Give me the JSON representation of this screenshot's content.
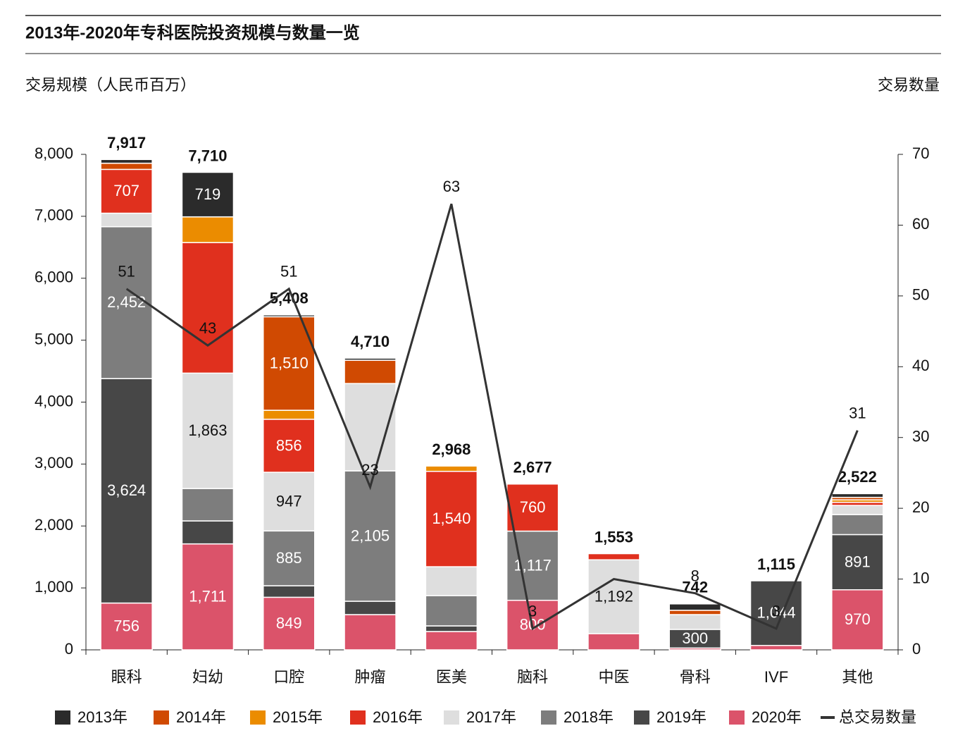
{
  "chart_data": {
    "type": "bar",
    "title": "2013年-2020年专科医院投资规模与数量一览",
    "ylabel": "交易规模（人民币百万）",
    "y2label": "交易数量",
    "categories": [
      "眼科",
      "妇幼",
      "口腔",
      "肿瘤",
      "医美",
      "脑科",
      "中医",
      "骨科",
      "IVF",
      "其他"
    ],
    "ylim": [
      0,
      8000
    ],
    "yticks": [
      0,
      {
        "value": 1000,
        "label": "1,000"
      },
      {
        "value": 2000,
        "label": "2,000"
      },
      {
        "value": 3000,
        "label": "3,000"
      },
      {
        "value": 4000,
        "label": "4,000"
      },
      {
        "value": 5000,
        "label": "5,000"
      },
      {
        "value": 6000,
        "label": "6,000"
      },
      {
        "value": 7000,
        "label": "7,000"
      },
      {
        "value": 8000,
        "label": "8,000"
      }
    ],
    "y2lim": [
      0,
      70
    ],
    "y2ticks": [
      0,
      10,
      20,
      30,
      40,
      50,
      60,
      70
    ],
    "total_labels": [
      "7,917",
      "7,710",
      "5,408",
      "4,710",
      "2,968",
      "2,677",
      "1,553",
      "742",
      "1,115",
      "2,522"
    ],
    "series": [
      {
        "name": "2020年",
        "color": "#db536a",
        "values": [
          756,
          1711,
          849,
          569,
          296,
          800,
          262,
          30,
          71,
          970
        ],
        "value_labels": [
          "756",
          "1,711",
          "849",
          null,
          null,
          "800",
          null,
          null,
          null,
          "970"
        ]
      },
      {
        "name": "2019年",
        "color": "#474747",
        "values": [
          3624,
          371,
          186,
          216,
          91,
          0,
          0,
          300,
          1044,
          891
        ],
        "value_labels": [
          "3,624",
          null,
          null,
          null,
          null,
          null,
          null,
          "300",
          "1,044",
          "891"
        ]
      },
      {
        "name": "2018年",
        "color": "#7d7d7d",
        "values": [
          2452,
          523,
          885,
          2105,
          489,
          1117,
          0,
          0,
          0,
          323
        ],
        "value_labels": [
          "2,452",
          null,
          "885",
          "2,105",
          null,
          "1,117",
          null,
          null,
          null,
          null
        ]
      },
      {
        "name": "2017年",
        "color": "#dedede",
        "values": [
          218,
          1863,
          947,
          1410,
          466,
          0,
          1192,
          239,
          0,
          148
        ],
        "value_labels": [
          null,
          "1,863",
          "947",
          null,
          null,
          null,
          "1,192",
          null,
          null,
          null
        ]
      },
      {
        "name": "2016年",
        "color": "#e0301e",
        "values": [
          707,
          2108,
          856,
          0,
          1540,
          760,
          99,
          0,
          0,
          50
        ],
        "value_labels": [
          "707",
          null,
          "856",
          null,
          "1,540",
          "760",
          null,
          null,
          null,
          null
        ]
      },
      {
        "name": "2015年",
        "color": "#eb8c00",
        "values": [
          0,
          415,
          145,
          0,
          86,
          0,
          0,
          0,
          0,
          40
        ],
        "value_labels": [
          null,
          null,
          null,
          null,
          null,
          null,
          null,
          null,
          null,
          null
        ]
      },
      {
        "name": "2014年",
        "color": "#d04a02",
        "values": [
          100,
          0,
          1510,
          376,
          0,
          0,
          0,
          70,
          0,
          40
        ],
        "value_labels": [
          null,
          null,
          "1,510",
          null,
          null,
          null,
          null,
          null,
          null,
          null
        ]
      },
      {
        "name": "2013年",
        "color": "#2b2b2b",
        "values": [
          60,
          719,
          30,
          34,
          0,
          0,
          0,
          103,
          0,
          60
        ],
        "value_labels": [
          null,
          "719",
          null,
          null,
          null,
          null,
          null,
          null,
          null,
          null
        ]
      },
      {
        "name": "总交易数量",
        "color": "#333333",
        "axis": "y2",
        "type": "line",
        "values": [
          51,
          43,
          51,
          23,
          63,
          3,
          10,
          8,
          3,
          31
        ],
        "value_labels": [
          "51",
          "43",
          "51",
          "23",
          "63",
          "3",
          null,
          "8",
          "3",
          "31"
        ]
      }
    ]
  }
}
